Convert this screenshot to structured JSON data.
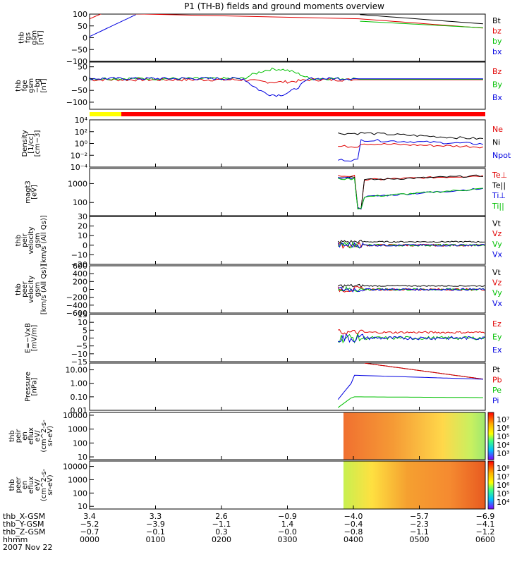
{
  "chart_data": {
    "type": "line",
    "title": "P1 (TH-B) fields and ground moments overview",
    "panels": [
      {
        "id": "fgs",
        "ylabel": [
          "thb",
          "fgs",
          "gsm",
          "[nT]"
        ],
        "ymin": -100,
        "ymax": 100,
        "log": false,
        "ticks": [
          {
            "v": 100,
            "t": "100"
          },
          {
            "v": 50,
            "t": "50"
          },
          {
            "v": 0,
            "t": "0"
          },
          {
            "v": -50,
            "t": "−50"
          },
          {
            "v": -100,
            "t": "−100"
          }
        ],
        "legend": [
          {
            "t": "Bt",
            "c": "#000000"
          },
          {
            "t": "bz",
            "c": "#e00000"
          },
          {
            "t": "by",
            "c": "#00c000"
          },
          {
            "t": "bx",
            "c": "#0000e0"
          }
        ]
      },
      {
        "id": "fge",
        "ylabel": [
          "thb",
          "fge",
          "gsm",
          "−bg",
          "[nT]"
        ],
        "ymin": -130,
        "ymax": 70,
        "log": false,
        "ticks": [
          {
            "v": 50,
            "t": "50"
          },
          {
            "v": 0,
            "t": "0"
          },
          {
            "v": -50,
            "t": "−50"
          },
          {
            "v": -100,
            "t": "−100"
          }
        ],
        "legend": [
          {
            "t": "Bz",
            "c": "#e00000"
          },
          {
            "t": "By",
            "c": "#00c000"
          },
          {
            "t": "Bx",
            "c": "#0000e0"
          }
        ]
      },
      {
        "id": "density",
        "ylabel": [
          "Density",
          "[1/cc]",
          "[cm−3]"
        ],
        "ymin": -4,
        "ymax": 4,
        "log": true,
        "ticks": [
          {
            "v": 4,
            "t": "10⁴"
          },
          {
            "v": 2,
            "t": "10²"
          },
          {
            "v": 0,
            "t": "10⁰"
          },
          {
            "v": -2,
            "t": "10⁻²"
          },
          {
            "v": -4,
            "t": "10⁻⁴"
          }
        ],
        "legend": [
          {
            "t": "Ne",
            "c": "#e00000"
          },
          {
            "t": "Ni",
            "c": "#000000"
          },
          {
            "t": "Npot",
            "c": "#0000e0"
          }
        ]
      },
      {
        "id": "temp",
        "ylabel": [
          "magt3",
          "[eV]"
        ],
        "ymin": 1.3,
        "ymax": 3.8,
        "log": true,
        "ticks": [
          {
            "v": 3,
            "t": "1000"
          },
          {
            "v": 2,
            "t": "100"
          }
        ],
        "legend": [
          {
            "t": "Te⊥",
            "c": "#e00000"
          },
          {
            "t": "Te||",
            "c": "#000000"
          },
          {
            "t": "Ti⊥",
            "c": "#0000e0"
          },
          {
            "t": "Ti||",
            "c": "#00c000"
          }
        ]
      },
      {
        "id": "peir",
        "ylabel": [
          "thb",
          "peir",
          "velocity",
          "gsm",
          "[km/s (All Qs)]"
        ],
        "ymin": -20,
        "ymax": 30,
        "log": false,
        "ticks": [
          {
            "v": 30,
            "t": "30"
          },
          {
            "v": 20,
            "t": "20"
          },
          {
            "v": 10,
            "t": "10"
          },
          {
            "v": 0,
            "t": "0"
          },
          {
            "v": -10,
            "t": "−10"
          },
          {
            "v": -20,
            "t": "−20"
          }
        ],
        "legend": [
          {
            "t": "Vt",
            "c": "#000000"
          },
          {
            "t": "Vz",
            "c": "#e00000"
          },
          {
            "t": "Vy",
            "c": "#00c000"
          },
          {
            "t": "Vx",
            "c": "#0000e0"
          }
        ]
      },
      {
        "id": "peer",
        "ylabel": [
          "thb",
          "peer",
          "velocity",
          "gsm",
          "[km/s (All Qs)]"
        ],
        "ymin": -600,
        "ymax": 600,
        "log": false,
        "ticks": [
          {
            "v": 600,
            "t": "600"
          },
          {
            "v": 400,
            "t": "400"
          },
          {
            "v": 200,
            "t": "200"
          },
          {
            "v": 0,
            "t": "0"
          },
          {
            "v": -200,
            "t": "−200"
          },
          {
            "v": -400,
            "t": "−400"
          },
          {
            "v": -600,
            "t": "−600"
          }
        ],
        "legend": [
          {
            "t": "Vt",
            "c": "#000000"
          },
          {
            "t": "Vz",
            "c": "#e00000"
          },
          {
            "t": "Vy",
            "c": "#00c000"
          },
          {
            "t": "Vx",
            "c": "#0000e0"
          }
        ]
      },
      {
        "id": "efield",
        "ylabel": [
          "E=−VxB",
          "[mV/m]"
        ],
        "ymin": -15,
        "ymax": 15,
        "log": false,
        "ticks": [
          {
            "v": 15,
            "t": "15"
          },
          {
            "v": 10,
            "t": "10"
          },
          {
            "v": 5,
            "t": "5"
          },
          {
            "v": 0,
            "t": "0"
          },
          {
            "v": -5,
            "t": "−5"
          },
          {
            "v": -10,
            "t": "−10"
          },
          {
            "v": -15,
            "t": "−15"
          }
        ],
        "legend": [
          {
            "t": "Ez",
            "c": "#e00000"
          },
          {
            "t": "Ey",
            "c": "#00c000"
          },
          {
            "t": "Ex",
            "c": "#0000e0"
          }
        ]
      },
      {
        "id": "pressure",
        "ylabel": [
          "Pressure",
          "[nPa]"
        ],
        "ymin": -2,
        "ymax": 1.5,
        "log": true,
        "ticks": [
          {
            "v": 1,
            "t": "10.00"
          },
          {
            "v": 0,
            "t": "1.00"
          },
          {
            "v": -1,
            "t": "0.10"
          },
          {
            "v": -2,
            "t": "0.01"
          }
        ],
        "legend": [
          {
            "t": "Pt",
            "c": "#000000"
          },
          {
            "t": "Pb",
            "c": "#e00000"
          },
          {
            "t": "Pe",
            "c": "#00c000"
          },
          {
            "t": "Pi",
            "c": "#0000e0"
          }
        ]
      },
      {
        "id": "peirspec",
        "ylabel": [
          "thb",
          "peir",
          "en",
          "eflux",
          "eV/",
          "(cm^2-s-",
          "sr-eV)"
        ],
        "ymin": 0.8,
        "ymax": 4.2,
        "log": true,
        "spec": true,
        "ticks": [
          {
            "v": 4,
            "t": "10000"
          },
          {
            "v": 3,
            "t": "1000"
          },
          {
            "v": 2,
            "t": "100"
          },
          {
            "v": 1,
            "t": "10"
          }
        ],
        "colorbar": [
          "10⁷",
          "10⁶",
          "10⁵",
          "10⁴",
          "10³"
        ]
      },
      {
        "id": "peerspec",
        "ylabel": [
          "thb",
          "peer",
          "en",
          "eflux",
          "eV/",
          "(cm^2-s-",
          "sr-eV)"
        ],
        "ymin": 0.8,
        "ymax": 4.4,
        "log": true,
        "spec": true,
        "ticks": [
          {
            "v": 4,
            "t": "10000"
          },
          {
            "v": 3,
            "t": "1000"
          },
          {
            "v": 2,
            "t": "100"
          },
          {
            "v": 1,
            "t": "10"
          }
        ],
        "colorbar": [
          "10⁸",
          "10⁷",
          "10⁶",
          "10⁵",
          "10⁴"
        ]
      }
    ],
    "x_axis": {
      "row_labels": [
        "thb_X-GSM",
        "thb_Y-GSM",
        "thb_Z-GSM",
        "hhmm",
        "2007 Nov 22"
      ],
      "ticks": [
        {
          "x": 0,
          "vals": [
            "3.4",
            "−5.2",
            "−0.7",
            "0000"
          ]
        },
        {
          "x": 60,
          "vals": [
            "3.3",
            "−3.9",
            "−0.1",
            "0100"
          ]
        },
        {
          "x": 120,
          "vals": [
            "2.6",
            "−1.1",
            "0.3",
            "0200"
          ]
        },
        {
          "x": 180,
          "vals": [
            "−0.9",
            "1.4",
            "−0.0",
            "0300"
          ]
        },
        {
          "x": 240,
          "vals": [
            "−4.0",
            "−0.4",
            "−0.8",
            "0400"
          ]
        },
        {
          "x": 300,
          "vals": [
            "−5.7",
            "−2.3",
            "−1.1",
            "0500"
          ]
        },
        {
          "x": 360,
          "vals": [
            "−6.9",
            "−4.1",
            "−1.2",
            "0600"
          ]
        }
      ]
    }
  }
}
